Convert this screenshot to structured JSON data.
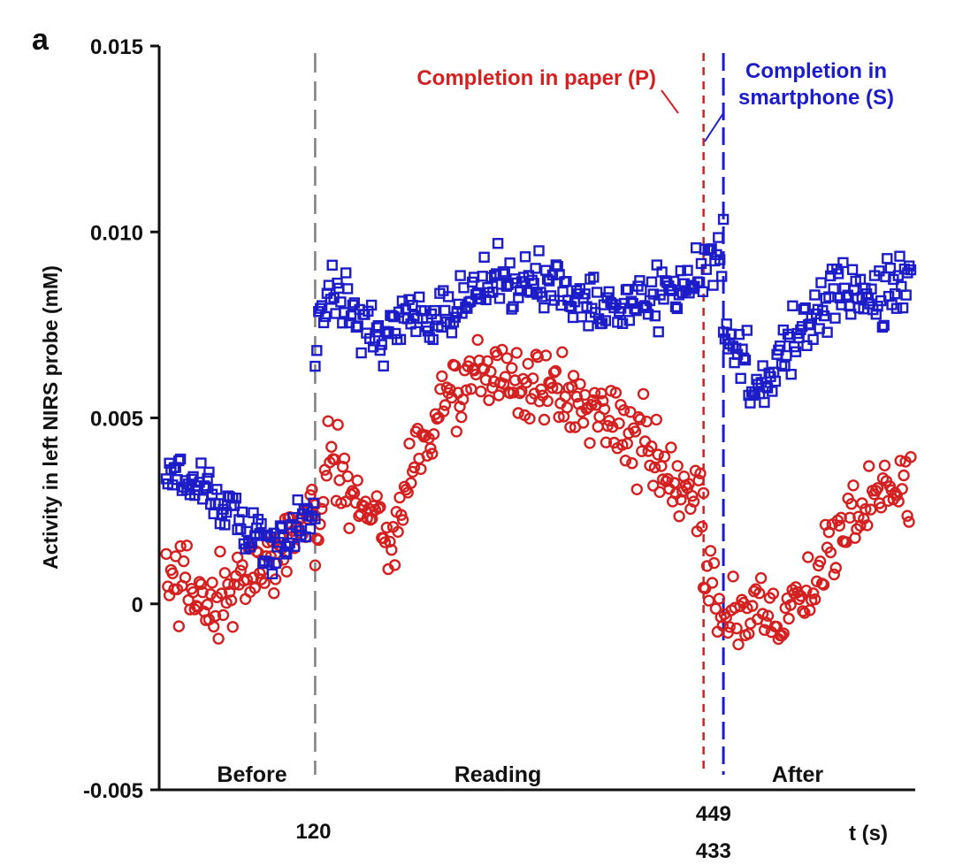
{
  "panel_label": "a",
  "colors": {
    "paper": "#d42020",
    "smartphone": "#1c1cc8",
    "before_marker": "#808080",
    "axis": "#111111"
  },
  "chart_data": {
    "type": "scatter",
    "title": "",
    "xlabel": "t (s)",
    "ylabel": "Activity in left NIRS probe (mM)",
    "xlim": [
      0,
      600
    ],
    "ylim": [
      -0.005,
      0.015
    ],
    "y_ticks": [
      {
        "value": -0.005,
        "label": "-0.005"
      },
      {
        "value": 0,
        "label": "0"
      },
      {
        "value": 0.005,
        "label": "0.005"
      },
      {
        "value": 0.01,
        "label": "0.010"
      },
      {
        "value": 0.015,
        "label": "0.015"
      }
    ],
    "x_ticks": [
      {
        "value": 120,
        "label": "120"
      },
      {
        "value": 433,
        "label": "433"
      },
      {
        "value": 449,
        "label": "449"
      }
    ],
    "grid": false,
    "legend": "none",
    "phases": [
      "Before",
      "Reading",
      "After"
    ],
    "markers": [
      {
        "x": 120,
        "style": "dashed",
        "color": "#808080"
      },
      {
        "x": 433,
        "style": "dashed",
        "color": "#d42020",
        "label": "Completion in paper (P)"
      },
      {
        "x": 449,
        "style": "dashed",
        "color": "#1c1cc8",
        "label": "Completion in\nsmartphone (S)"
      }
    ],
    "series": [
      {
        "color": "#d42020",
        "marker": "circle",
        "segments": [
          {
            "x": [
              0,
              120
            ],
            "anchors": [
              [
                0,
                0.0008
              ],
              [
                20,
                0.0004
              ],
              [
                40,
                -0.0002
              ],
              [
                60,
                0.0005
              ],
              [
                80,
                0.0012
              ],
              [
                100,
                0.002
              ],
              [
                120,
                0.0025
              ]
            ],
            "noise": 0.0012,
            "n": 95
          },
          {
            "x": [
              120,
              433
            ],
            "anchors": [
              [
                120,
                0.0015
              ],
              [
                130,
                0.004
              ],
              [
                150,
                0.003
              ],
              [
                170,
                0.0022
              ],
              [
                185,
                0.0018
              ],
              [
                200,
                0.004
              ],
              [
                225,
                0.0055
              ],
              [
                250,
                0.006
              ],
              [
                270,
                0.0062
              ],
              [
                300,
                0.0058
              ],
              [
                330,
                0.0055
              ],
              [
                360,
                0.005
              ],
              [
                385,
                0.0042
              ],
              [
                410,
                0.003
              ],
              [
                433,
                0.0025
              ]
            ],
            "noise": 0.0011,
            "n": 240
          },
          {
            "x": [
              433,
              600
            ],
            "anchors": [
              [
                433,
                0.0005
              ],
              [
                449,
                -0.0002
              ],
              [
                470,
                0.0
              ],
              [
                495,
                -0.0002
              ],
              [
                520,
                0.0005
              ],
              [
                545,
                0.0018
              ],
              [
                570,
                0.003
              ],
              [
                600,
                0.0032
              ]
            ],
            "noise": 0.0011,
            "n": 120
          }
        ]
      },
      {
        "color": "#1c1cc8",
        "marker": "square",
        "segments": [
          {
            "x": [
              0,
              120
            ],
            "anchors": [
              [
                0,
                0.0035
              ],
              [
                20,
                0.0033
              ],
              [
                40,
                0.003
              ],
              [
                60,
                0.0022
              ],
              [
                80,
                0.0015
              ],
              [
                100,
                0.0018
              ],
              [
                120,
                0.0025
              ]
            ],
            "noise": 0.0008,
            "n": 95
          },
          {
            "x": [
              120,
              449
            ],
            "anchors": [
              [
                120,
                0.007
              ],
              [
                135,
                0.0085
              ],
              [
                150,
                0.008
              ],
              [
                170,
                0.0072
              ],
              [
                200,
                0.0078
              ],
              [
                230,
                0.008
              ],
              [
                260,
                0.0085
              ],
              [
                290,
                0.0087
              ],
              [
                330,
                0.0083
              ],
              [
                360,
                0.0082
              ],
              [
                390,
                0.0082
              ],
              [
                420,
                0.0085
              ],
              [
                440,
                0.0095
              ],
              [
                449,
                0.0095
              ]
            ],
            "noise": 0.0009,
            "n": 240
          },
          {
            "x": [
              449,
              600
            ],
            "anchors": [
              [
                449,
                0.0075
              ],
              [
                465,
                0.0065
              ],
              [
                480,
                0.006
              ],
              [
                500,
                0.0068
              ],
              [
                520,
                0.0078
              ],
              [
                545,
                0.0085
              ],
              [
                570,
                0.008
              ],
              [
                600,
                0.0088
              ]
            ],
            "noise": 0.0009,
            "n": 120
          }
        ]
      }
    ]
  }
}
